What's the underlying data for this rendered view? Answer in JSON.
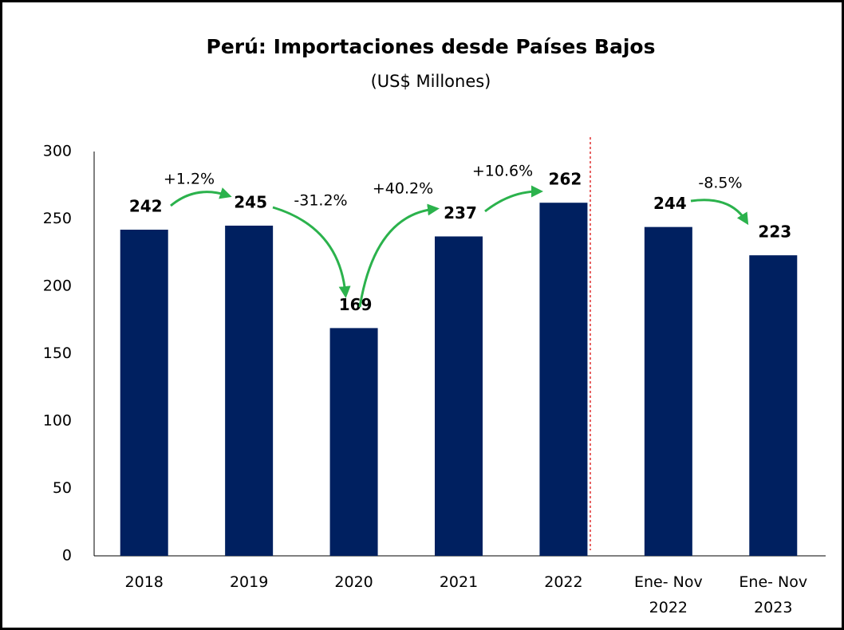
{
  "chart_data": {
    "type": "bar",
    "title": "Perú: Importaciones desde Países Bajos",
    "subtitle": "(US$ Millones)",
    "categories": [
      "2018",
      "2019",
      "2020",
      "2021",
      "2022",
      "Ene- Nov 2022",
      "Ene- Nov 2023"
    ],
    "values": [
      242,
      245,
      169,
      237,
      262,
      244,
      223
    ],
    "color": "#002060",
    "ylim": [
      0,
      300
    ],
    "yticks": [
      0,
      50,
      100,
      150,
      200,
      250,
      300
    ],
    "grid": false,
    "annotations": [
      "+1.2%",
      "-31.2%",
      "+40.2%",
      "+10.6%",
      "-8.5%"
    ]
  }
}
